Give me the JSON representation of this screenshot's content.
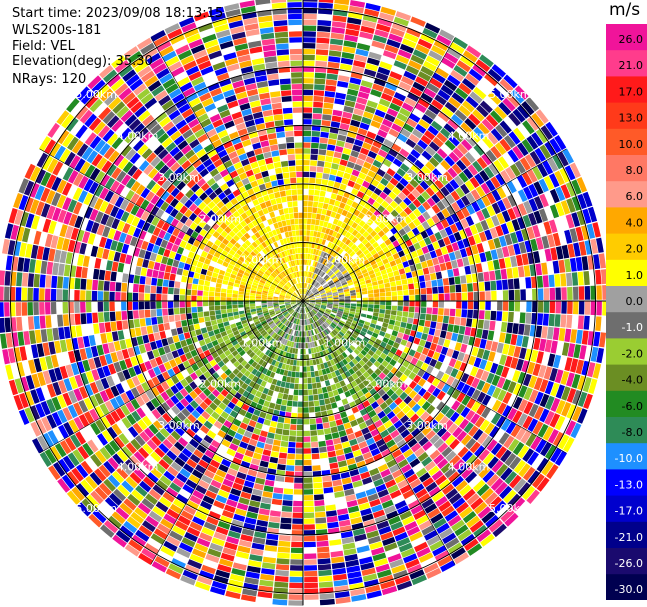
{
  "header": {
    "start_time": "Start time: 2023/09/08 18:13:15",
    "instrument": "WLS200s-181",
    "field": "Field: VEL",
    "elevation": "Elevation(deg): 35.30",
    "nrays": "NRays: 120"
  },
  "colorbar": {
    "unit": "m/s",
    "ticks": [
      "26.0",
      "21.0",
      "17.0",
      "13.0",
      "10.0",
      "8.0",
      "6.0",
      "4.0",
      "2.0",
      "1.0",
      "0.0",
      "-1.0",
      "-2.0",
      "-4.0",
      "-6.0",
      "-8.0",
      "-10.0",
      "-13.0",
      "-17.0",
      "-21.0",
      "-26.0",
      "-30.0"
    ],
    "colors": [
      "#f0149a",
      "#ff3c8c",
      "#ff1a1a",
      "#ff3a1a",
      "#ff5a28",
      "#ff7864",
      "#ff9a8a",
      "#ffa800",
      "#ffcc00",
      "#ffff00",
      "#a0a0a0",
      "#6e6e6e",
      "#9acd32",
      "#6b8e23",
      "#228b22",
      "#2e8b57",
      "#1e90ff",
      "#0000ff",
      "#0000cd",
      "#00008b",
      "#1a0a6e",
      "#000050"
    ]
  },
  "chart_data": {
    "type": "ppi",
    "field": "VEL",
    "units": "m/s",
    "nrays": 120,
    "elevation_deg": 35.3,
    "range_rings_km": [
      1.0,
      2.0,
      3.0,
      4.0,
      5.0
    ],
    "ring_label": "km",
    "label_texts": [
      "1.00km",
      "2.00km",
      "3.00km",
      "4.00km",
      "5.00km"
    ],
    "vmin": -30.0,
    "vmax": 26.0,
    "dominant_near_field": "0 to 4 m/s (north half), -1 to -6 m/s (south half)"
  }
}
